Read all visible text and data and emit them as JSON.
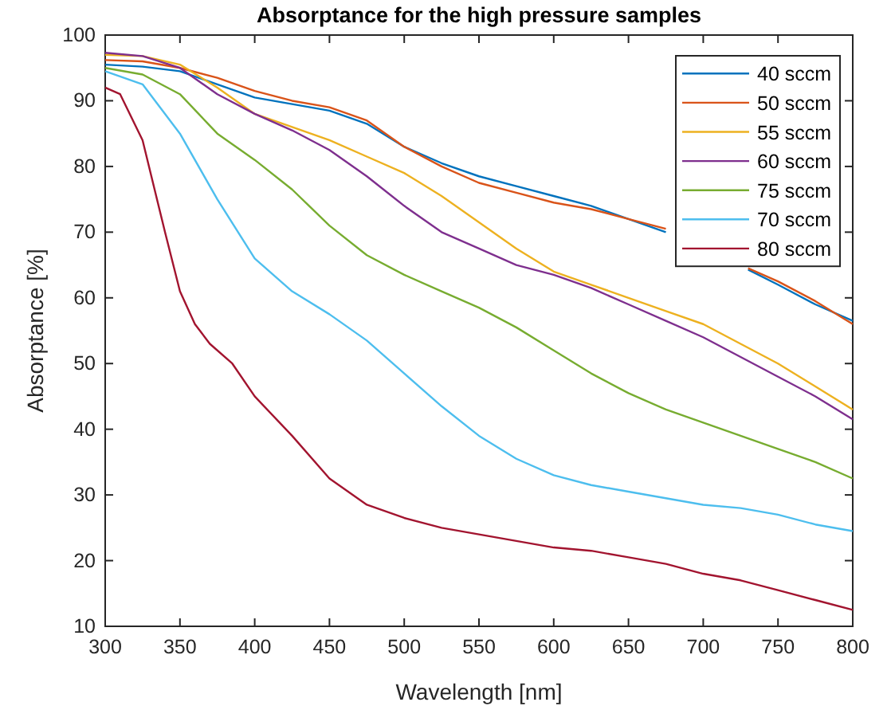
{
  "chart_data": {
    "type": "line",
    "title": "Absorptance for the high pressure samples",
    "xlabel": "Wavelength [nm]",
    "ylabel": "Absorptance [%]",
    "xlim": [
      300,
      800
    ],
    "ylim": [
      10,
      100
    ],
    "xticks": [
      300,
      350,
      400,
      450,
      500,
      550,
      600,
      650,
      700,
      750,
      800
    ],
    "yticks": [
      10,
      20,
      30,
      40,
      50,
      60,
      70,
      80,
      90,
      100
    ],
    "grid": false,
    "legend": "top right",
    "line_style": "solid",
    "marker": "none",
    "x": [
      300,
      325,
      350,
      375,
      400,
      425,
      450,
      475,
      500,
      525,
      550,
      575,
      600,
      625,
      650,
      675,
      700,
      725,
      750,
      775,
      800
    ],
    "series": [
      {
        "name": "40 sccm",
        "color": "#0072bd",
        "x": [
          300,
          325,
          350,
          375,
          400,
          425,
          450,
          475,
          500,
          525,
          550,
          575,
          600,
          625,
          650,
          675,
          700,
          730,
          750,
          775,
          800
        ],
        "values": [
          95.5,
          95.2,
          94.5,
          92.5,
          90.5,
          89.5,
          88.5,
          86.5,
          83,
          80.5,
          78.5,
          77,
          75.5,
          74,
          72,
          70,
          null,
          64.3,
          62,
          59,
          56.5
        ]
      },
      {
        "name": "50 sccm",
        "color": "#d95319",
        "x": [
          300,
          325,
          350,
          375,
          400,
          425,
          450,
          475,
          500,
          525,
          550,
          575,
          600,
          625,
          650,
          675,
          700,
          730,
          750,
          775,
          800
        ],
        "values": [
          96.2,
          96,
          95,
          93.5,
          91.5,
          90,
          89,
          87,
          83,
          80,
          77.5,
          76,
          74.5,
          73.5,
          72,
          70.5,
          null,
          64.5,
          62.5,
          59.5,
          56
        ]
      },
      {
        "name": "55 sccm",
        "color": "#edb120",
        "values": [
          97,
          96.8,
          95.5,
          92,
          88,
          86,
          84,
          81.5,
          79,
          75.5,
          71.5,
          67.5,
          64,
          62,
          60,
          58,
          56,
          53,
          50,
          46.5,
          43
        ]
      },
      {
        "name": "60 sccm",
        "color": "#7e2f8e",
        "values": [
          97.3,
          96.8,
          95,
          91,
          88,
          85.5,
          82.5,
          78.5,
          74,
          70,
          67.5,
          65,
          63.5,
          61.5,
          59,
          56.5,
          54,
          51,
          48,
          45,
          41.5
        ]
      },
      {
        "name": "75 sccm",
        "color": "#77ac30",
        "values": [
          95,
          94,
          91,
          85,
          81,
          76.5,
          71,
          66.5,
          63.5,
          61,
          58.5,
          55.5,
          52,
          48.5,
          45.5,
          43,
          41,
          39,
          37,
          35,
          32.5
        ]
      },
      {
        "name": "70 sccm",
        "color": "#4dbeee",
        "values": [
          94.5,
          92.5,
          85,
          75,
          66,
          61,
          57.5,
          53.5,
          48.5,
          43.5,
          39,
          35.5,
          33,
          31.5,
          30.5,
          29.5,
          28.5,
          28,
          27,
          25.5,
          24.5
        ]
      },
      {
        "name": "80 sccm",
        "color": "#a2142f",
        "x": [
          300,
          310,
          325,
          340,
          350,
          360,
          370,
          385,
          400,
          425,
          450,
          475,
          500,
          525,
          550,
          575,
          600,
          625,
          650,
          675,
          700,
          725,
          750,
          775,
          800
        ],
        "values": [
          92,
          91,
          84,
          70,
          61,
          56,
          53,
          50,
          45,
          39,
          32.5,
          28.5,
          26.5,
          25,
          24,
          23,
          22,
          21.5,
          20.5,
          19.5,
          18,
          17,
          15.5,
          14,
          12.5
        ]
      }
    ]
  }
}
